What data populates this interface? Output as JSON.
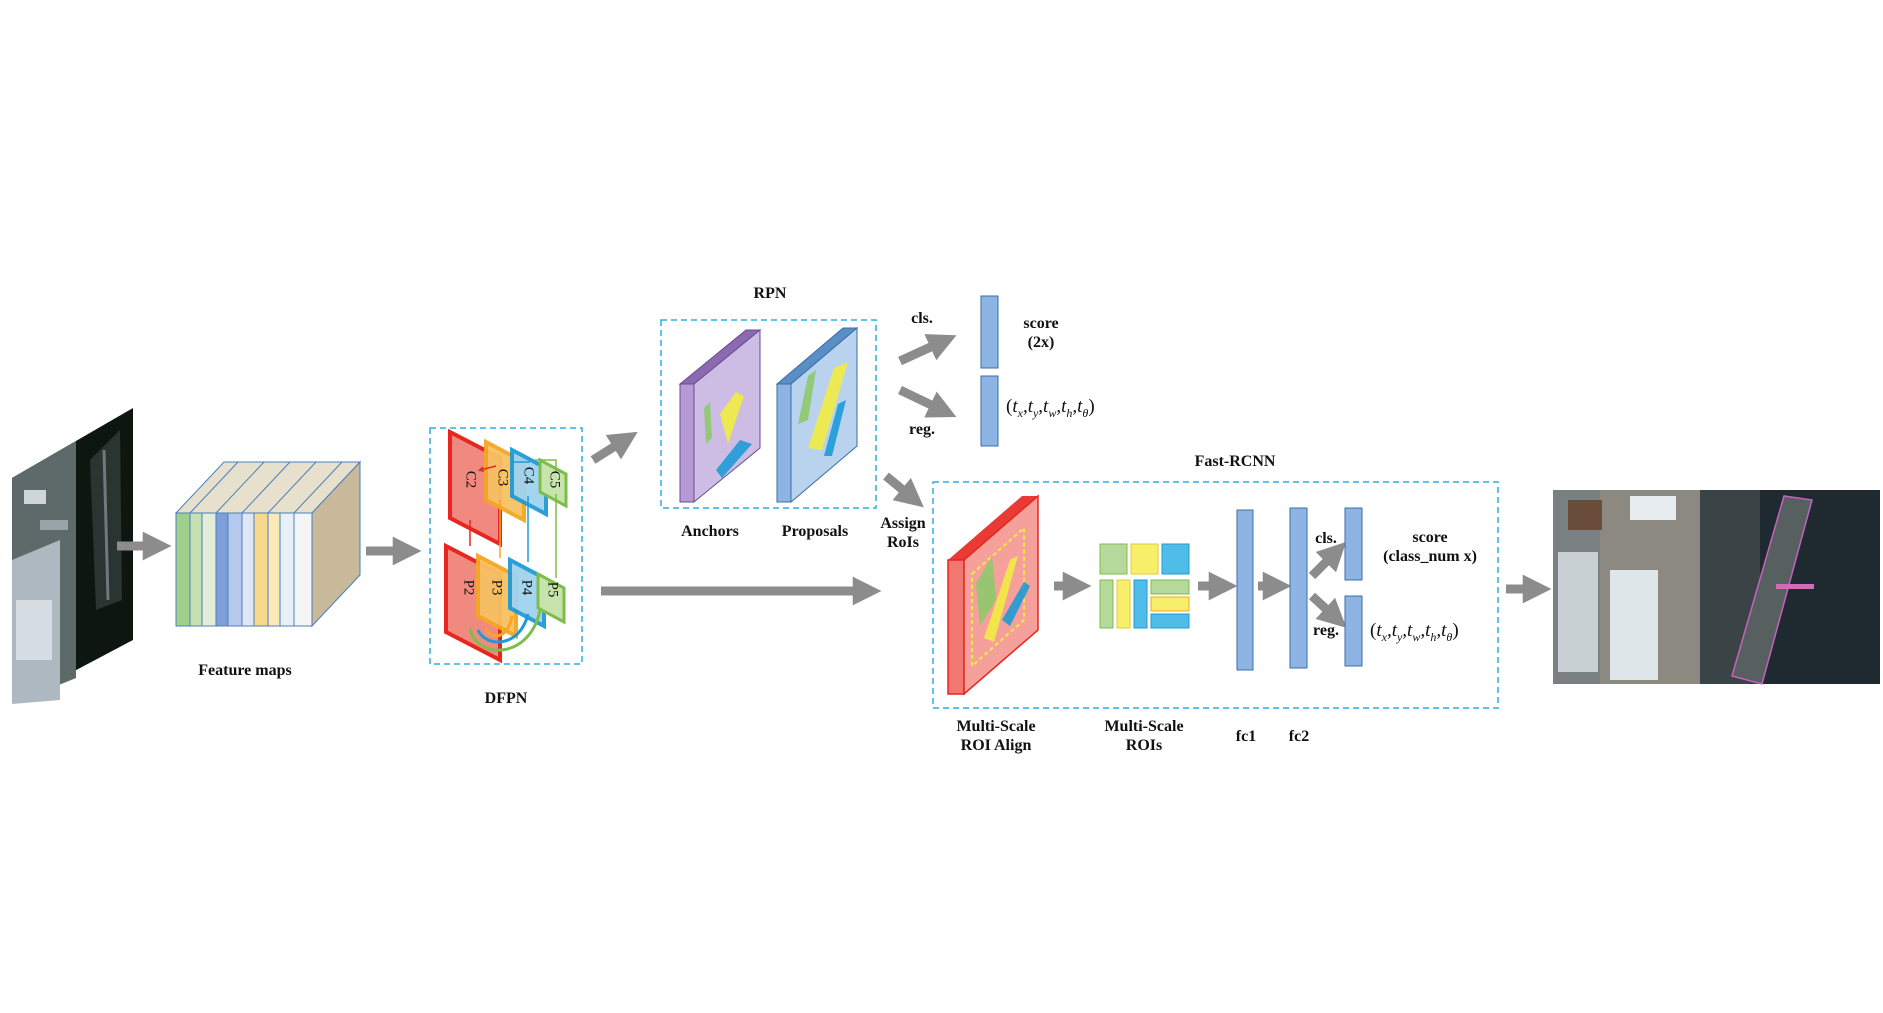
{
  "labels": {
    "feature_maps": "Feature maps",
    "dfpn": "DFPN",
    "rpn": "RPN",
    "anchors": "Anchors",
    "proposals": "Proposals",
    "assign_rois_1": "Assign",
    "assign_rois_2": "RoIs",
    "fast_rcnn": "Fast-RCNN",
    "ms_roi_align_1": "Multi-Scale",
    "ms_roi_align_2": "ROI Align",
    "ms_rois_1": "Multi-Scale",
    "ms_rois_2": "ROIs",
    "fc1": "fc1",
    "fc2": "fc2",
    "rpn_cls": "cls.",
    "rpn_reg": "reg.",
    "rpn_score_1": "score",
    "rpn_score_2": "(2x)",
    "frcnn_cls": "cls.",
    "frcnn_reg": "reg.",
    "frcnn_score_1": "score",
    "frcnn_score_2": "(class_num x)"
  },
  "dfpn_levels": {
    "c2": "C2",
    "c3": "C3",
    "c4": "C4",
    "c5": "C5",
    "p2": "P2",
    "p3": "P3",
    "p4": "P4",
    "p5": "P5"
  },
  "regression_params": [
    "x",
    "y",
    "w",
    "h",
    "θ"
  ],
  "colors": {
    "arrow": "#8c8c8c",
    "dashed_box": "#2ab0e0",
    "fc_bar": "#8db4e2",
    "fc_bar_border": "#3b6fa6",
    "red": "#e8251f",
    "orange": "#f5a623",
    "blue": "#1f9ad6",
    "green": "#7dbd4a",
    "yellow": "#f2ec42",
    "purple": "#a886c8",
    "proposal_blue": "#9cc3e5"
  }
}
